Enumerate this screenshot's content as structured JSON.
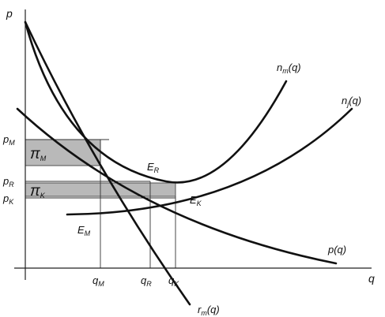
{
  "axes": {
    "y_label": "p",
    "x_label": "q"
  },
  "price_ticks": [
    {
      "main": "p",
      "sub": "M"
    },
    {
      "main": "p",
      "sub": "R"
    },
    {
      "main": "p",
      "sub": "K"
    }
  ],
  "quantity_ticks": [
    {
      "main": "q",
      "sub": "M"
    },
    {
      "main": "q",
      "sub": "R"
    },
    {
      "main": "q",
      "sub": "K"
    }
  ],
  "curves": {
    "demand": "p(q)",
    "marginal_revenue": {
      "main": "r",
      "sub": "m",
      "tail": "(q)"
    },
    "nm": {
      "main": "n",
      "sub": "m",
      "tail": "(q)"
    },
    "nj": {
      "main": "n",
      "sub": "j",
      "tail": "(q)"
    }
  },
  "points": [
    {
      "main": "E",
      "sub": "M"
    },
    {
      "main": "E",
      "sub": "R"
    },
    {
      "main": "E",
      "sub": "K"
    }
  ],
  "profit_areas": [
    {
      "main": "π",
      "sub": "M"
    },
    {
      "main": "π",
      "sub": "K"
    }
  ],
  "colors": {
    "profit_fill": "#b9b9b9",
    "curve": "#111111"
  }
}
